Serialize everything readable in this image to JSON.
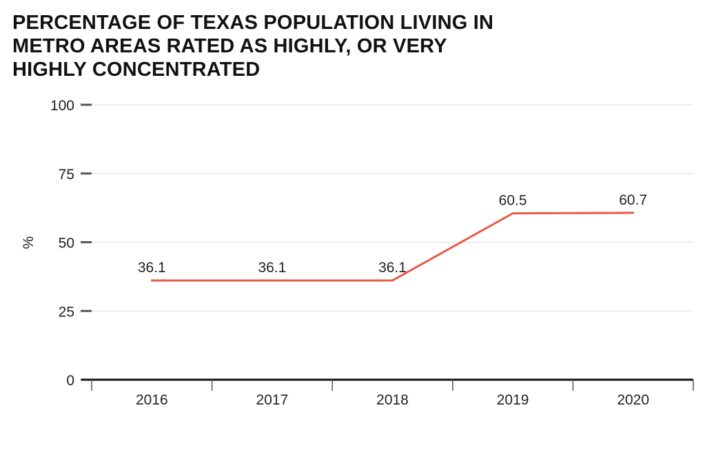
{
  "title_lines": [
    "PERCENTAGE OF TEXAS POPULATION LIVING IN",
    "METRO AREAS RATED AS HIGHLY, OR VERY",
    "HIGHLY CONCENTRATED"
  ],
  "colors": {
    "line": "#e8594a",
    "axis": "#111111",
    "grid": "#dddddd",
    "tick": "#555555"
  },
  "chart_data": {
    "type": "line",
    "title": "PERCENTAGE OF TEXAS POPULATION LIVING IN METRO AREAS RATED AS HIGHLY, OR VERY HIGHLY CONCENTRATED",
    "xlabel": "",
    "ylabel": "%",
    "categories": [
      "2016",
      "2017",
      "2018",
      "2019",
      "2020"
    ],
    "series": [
      {
        "name": "Percentage",
        "values": [
          36.1,
          36.1,
          36.1,
          60.5,
          60.7
        ],
        "labels": [
          "36.1",
          "36.1",
          "36.1",
          "60.5",
          "60.7"
        ]
      }
    ],
    "ylim": [
      0,
      100
    ],
    "yticks": [
      "0",
      "25",
      "50",
      "75",
      "100"
    ],
    "grid": true
  }
}
